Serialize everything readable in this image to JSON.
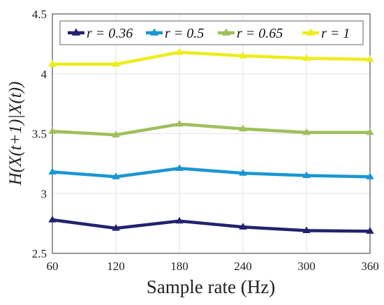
{
  "chart_data": {
    "type": "line",
    "xlabel": "Sample rate (Hz)",
    "ylabel": "H(X(t+1)|X(t))",
    "x": [
      60,
      120,
      180,
      240,
      300,
      360
    ],
    "xlim": [
      60,
      360
    ],
    "ylim": [
      2.5,
      4.5
    ],
    "xticks": [
      "60",
      "120",
      "180",
      "240",
      "300",
      "360"
    ],
    "yticks": [
      "2.5",
      "3",
      "3.5",
      "4",
      "4.5"
    ],
    "grid": true,
    "legend_position": "top",
    "series": [
      {
        "name": "r = 0.36",
        "color": "#22236e",
        "values": [
          2.78,
          2.71,
          2.77,
          2.72,
          2.69,
          2.685
        ]
      },
      {
        "name": "r = 0.5",
        "color": "#1a96d2",
        "values": [
          3.18,
          3.14,
          3.21,
          3.17,
          3.15,
          3.14
        ]
      },
      {
        "name": "r = 0.65",
        "color": "#9ebf5c",
        "values": [
          3.52,
          3.49,
          3.58,
          3.54,
          3.51,
          3.51
        ]
      },
      {
        "name": "r = 1",
        "color": "#eded1c",
        "values": [
          4.08,
          4.08,
          4.18,
          4.15,
          4.13,
          4.12
        ]
      }
    ]
  }
}
